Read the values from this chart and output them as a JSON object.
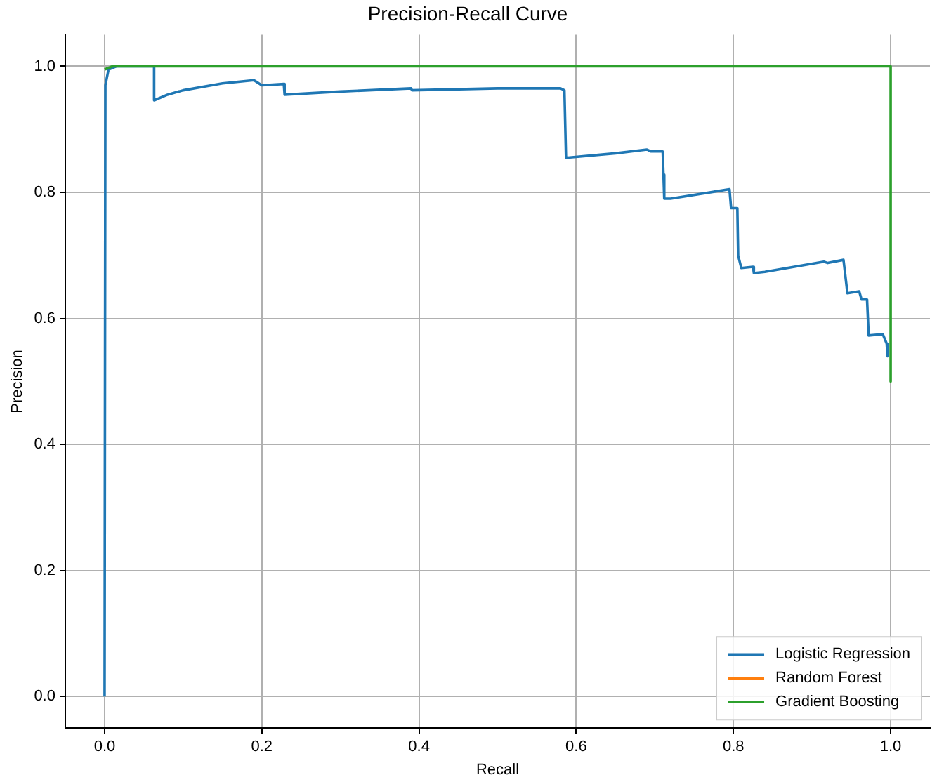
{
  "chart_data": {
    "type": "line",
    "title": "Precision-Recall Curve",
    "xlabel": "Recall",
    "ylabel": "Precision",
    "xlim": [
      -0.05,
      1.05
    ],
    "ylim": [
      -0.05,
      1.05
    ],
    "xticks": [
      {
        "value": 0,
        "label": "0.0"
      },
      0.2,
      0.4,
      0.6,
      0.8,
      {
        "value": 1,
        "label": "1.0"
      }
    ],
    "yticks": [
      {
        "value": 0,
        "label": "0.0"
      },
      0.2,
      0.4,
      0.6,
      0.8,
      {
        "value": 1,
        "label": "1.0"
      }
    ],
    "grid": true,
    "legend": "bottom right",
    "marker": "none",
    "line_style": "solid",
    "series": [
      {
        "name": "Logistic Regression",
        "color": "#1f77b4",
        "x": [
          0,
          0.001,
          0.005,
          0.015,
          0.063,
          0.063,
          0.08,
          0.1,
          0.15,
          0.19,
          0.2,
          0.228,
          0.229,
          0.3,
          0.39,
          0.391,
          0.5,
          0.58,
          0.585,
          0.587,
          0.65,
          0.69,
          0.695,
          0.71,
          0.711,
          0.712,
          0.72,
          0.795,
          0.797,
          0.805,
          0.806,
          0.81,
          0.825,
          0.826,
          0.84,
          0.915,
          0.92,
          0.94,
          0.942,
          0.945,
          0.96,
          0.963,
          0.97,
          0.972,
          0.99,
          0.995,
          0.996
        ],
        "values": [
          0,
          0.97,
          0.995,
          1,
          1,
          0.946,
          0.955,
          0.962,
          0.973,
          0.978,
          0.97,
          0.972,
          0.955,
          0.96,
          0.965,
          0.962,
          0.965,
          0.965,
          0.962,
          0.855,
          0.862,
          0.868,
          0.865,
          0.865,
          0.828,
          0.79,
          0.79,
          0.805,
          0.775,
          0.775,
          0.7,
          0.68,
          0.682,
          0.672,
          0.674,
          0.69,
          0.688,
          0.693,
          0.672,
          0.64,
          0.643,
          0.63,
          0.63,
          0.573,
          0.575,
          0.56,
          0.54
        ]
      },
      {
        "name": "Random Forest",
        "color": "#ff7f0e"
      },
      {
        "name": "Gradient Boosting",
        "color": "#2ca02c",
        "x": [
          0,
          0.01,
          1,
          1
        ],
        "values": [
          0.995,
          1,
          1,
          0.5
        ]
      }
    ]
  }
}
